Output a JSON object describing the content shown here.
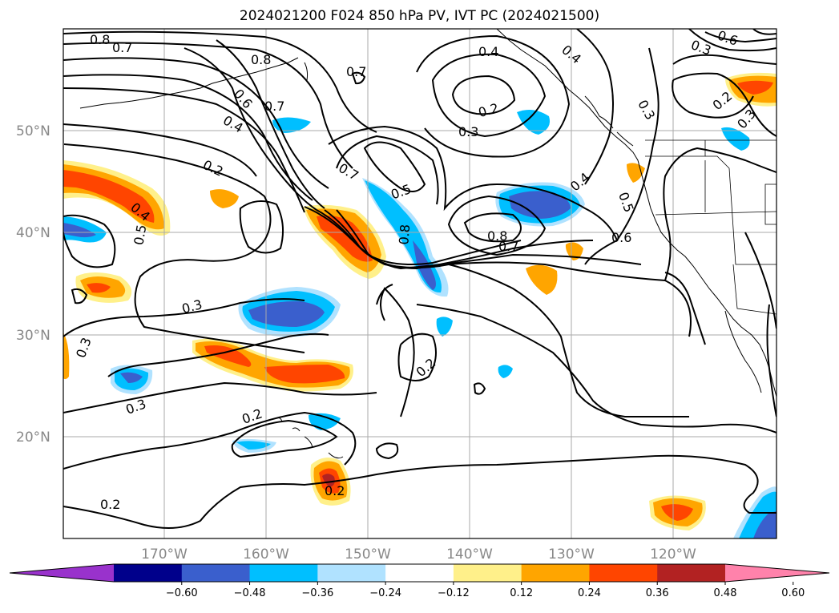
{
  "title": "2024021200 F024 850 hPa PV, IVT PC (2024021500)",
  "map": {
    "lat_labels": [
      "50°N",
      "40°N",
      "30°N",
      "20°N"
    ],
    "lon_labels": [
      "170°W",
      "160°W",
      "150°W",
      "140°W",
      "130°W",
      "120°W"
    ]
  },
  "contour_labels": [
    {
      "id": "a",
      "text": "0.8"
    },
    {
      "id": "b",
      "text": "0.7"
    },
    {
      "id": "c",
      "text": "0.8"
    },
    {
      "id": "d",
      "text": "0.6"
    },
    {
      "id": "e",
      "text": "0.7"
    },
    {
      "id": "f",
      "text": "0.4"
    },
    {
      "id": "g",
      "text": "0.7"
    },
    {
      "id": "h",
      "text": "0.2"
    },
    {
      "id": "i",
      "text": "0.4"
    },
    {
      "id": "j",
      "text": "0.5"
    },
    {
      "id": "k",
      "text": "0.7"
    },
    {
      "id": "l",
      "text": "0.5"
    },
    {
      "id": "m",
      "text": "0.8"
    },
    {
      "id": "n",
      "text": "0.4"
    },
    {
      "id": "o",
      "text": "0.2"
    },
    {
      "id": "p",
      "text": "0.3"
    },
    {
      "id": "q",
      "text": "0.4"
    },
    {
      "id": "r",
      "text": "0.3"
    },
    {
      "id": "s",
      "text": "0.5"
    },
    {
      "id": "t",
      "text": "0.6"
    },
    {
      "id": "u",
      "text": "0.3"
    },
    {
      "id": "v",
      "text": "0.4"
    },
    {
      "id": "w",
      "text": "0.2"
    },
    {
      "id": "x",
      "text": "0.3"
    },
    {
      "id": "y",
      "text": "0.2"
    },
    {
      "id": "z",
      "text": "0.2"
    },
    {
      "id": "aa",
      "text": "0.2"
    },
    {
      "id": "ab",
      "text": "0.8"
    },
    {
      "id": "ac",
      "text": "0.7"
    },
    {
      "id": "ad",
      "text": "0.3"
    },
    {
      "id": "ae",
      "text": "0.3"
    },
    {
      "id": "af",
      "text": "0.2"
    },
    {
      "id": "ag",
      "text": "0.3"
    },
    {
      "id": "ah",
      "text": "0.6"
    }
  ],
  "colorbar": {
    "colors": [
      "#9932cc",
      "#00008b",
      "#3a5fcd",
      "#00bfff",
      "#b0e2ff",
      "#ffffff",
      "#fff08a",
      "#ffa500",
      "#ff4500",
      "#b22222",
      "#ff82ab"
    ],
    "tick_labels": [
      "−0.60",
      "−0.48",
      "−0.36",
      "−0.24",
      "−0.12",
      "0.12",
      "0.24",
      "0.36",
      "0.48",
      "0.60"
    ]
  }
}
